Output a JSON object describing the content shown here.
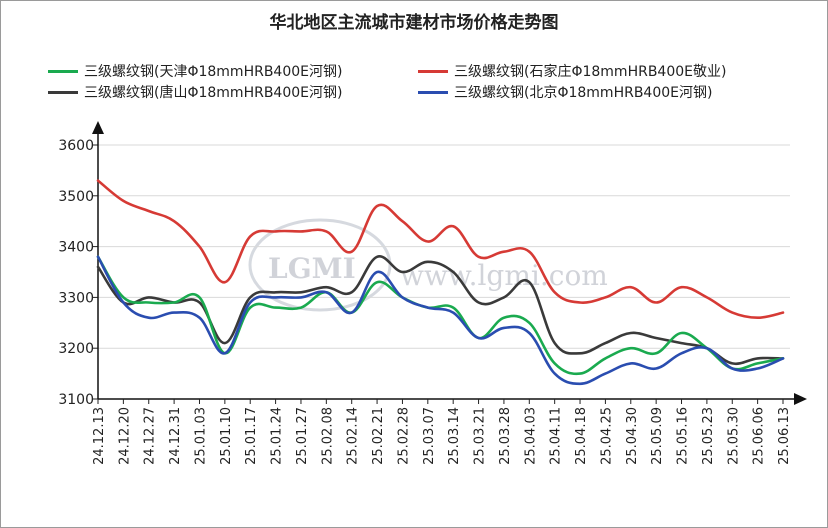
{
  "chart_data": {
    "type": "line",
    "title": "华北地区主流城市建材市场价格走势图",
    "xlabel": "",
    "ylabel": "",
    "ylim": [
      3100,
      3600
    ],
    "yticks": [
      3100,
      3200,
      3300,
      3400,
      3500,
      3600
    ],
    "grid": true,
    "legend_position": "top",
    "categories": [
      "24.12.13",
      "24.12.20",
      "24.12.27",
      "24.12.31",
      "25.01.03",
      "25.01.10",
      "25.01.17",
      "25.01.24",
      "25.01.27",
      "25.02.08",
      "25.02.14",
      "25.02.21",
      "25.02.28",
      "25.03.07",
      "25.03.14",
      "25.03.21",
      "25.03.28",
      "25.04.03",
      "25.04.11",
      "25.04.18",
      "25.04.25",
      "25.04.30",
      "25.05.09",
      "25.05.16",
      "25.05.23",
      "25.05.30",
      "25.06.06",
      "25.06.13"
    ],
    "series": [
      {
        "name": "三级螺纹钢(天津Φ18mmHRB400E河钢)",
        "color": "#1aaa4f",
        "values": [
          3380,
          3300,
          3290,
          3290,
          3300,
          3190,
          3280,
          3280,
          3280,
          3310,
          3270,
          3330,
          3300,
          3280,
          3280,
          3220,
          3260,
          3250,
          3170,
          3150,
          3180,
          3200,
          3190,
          3230,
          3200,
          3160,
          3170,
          3180
        ]
      },
      {
        "name": "三级螺纹钢(石家庄Φ18mmHRB400E敬业)",
        "color": "#d63a35",
        "values": [
          3530,
          3490,
          3470,
          3450,
          3400,
          3330,
          3420,
          3430,
          3430,
          3430,
          3390,
          3480,
          3450,
          3410,
          3440,
          3380,
          3390,
          3390,
          3310,
          3290,
          3300,
          3320,
          3290,
          3320,
          3300,
          3270,
          3260,
          3270
        ]
      },
      {
        "name": "三级螺纹钢(唐山Φ18mmHRB400E河钢)",
        "color": "#3a3a3a",
        "values": [
          3360,
          3290,
          3300,
          3290,
          3290,
          3210,
          3300,
          3310,
          3310,
          3320,
          3310,
          3380,
          3350,
          3370,
          3350,
          3290,
          3300,
          3330,
          3210,
          3190,
          3210,
          3230,
          3220,
          3210,
          3200,
          3170,
          3180,
          3180
        ]
      },
      {
        "name": "三级螺纹钢(北京Φ18mmHRB400E河钢)",
        "color": "#2a4db0",
        "values": [
          3380,
          3290,
          3260,
          3270,
          3260,
          3190,
          3290,
          3300,
          3300,
          3310,
          3270,
          3350,
          3300,
          3280,
          3270,
          3220,
          3240,
          3230,
          3150,
          3130,
          3150,
          3170,
          3160,
          3190,
          3200,
          3160,
          3160,
          3180
        ]
      }
    ]
  },
  "watermark": {
    "logo_text": "LGMI",
    "site_text": "www.lgmi.com"
  }
}
